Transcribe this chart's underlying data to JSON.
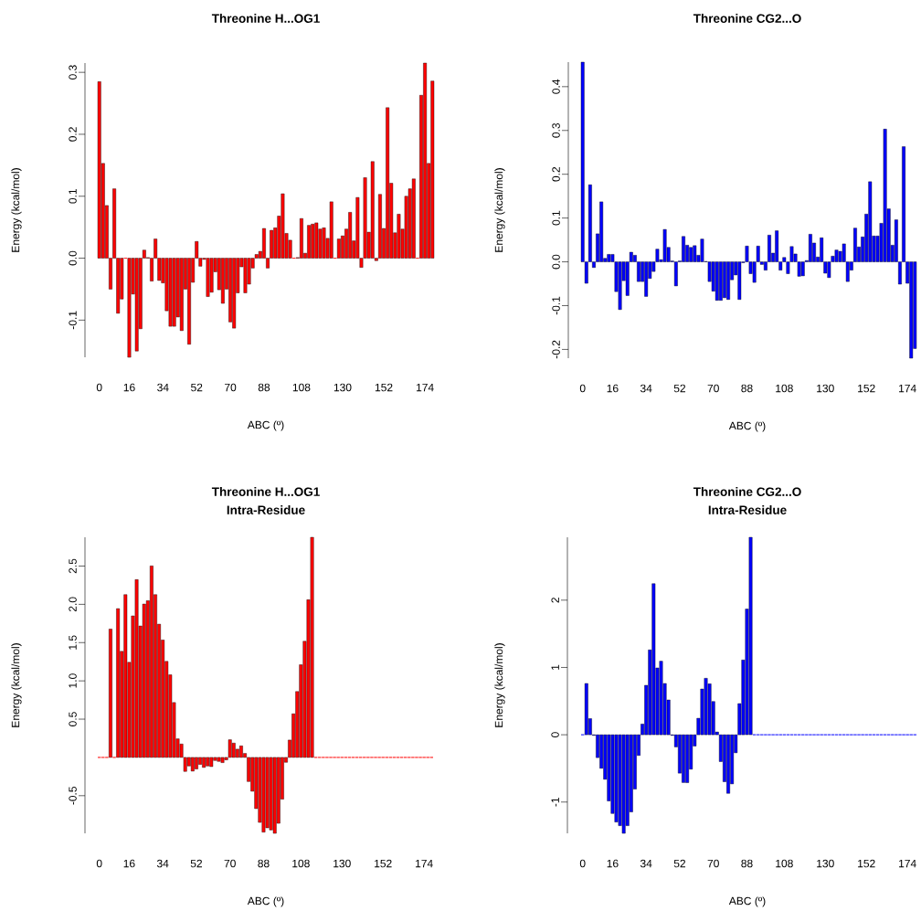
{
  "chart_data": [
    {
      "type": "bar",
      "title": "Threonine H...OG1",
      "xlabel": "ABC (º)",
      "ylabel": "Energy (kcal/mol)",
      "color": "#ff0000",
      "categories": [
        "0",
        null,
        null,
        null,
        null,
        null,
        null,
        null,
        "16",
        null,
        null,
        null,
        null,
        null,
        null,
        null,
        null,
        "34",
        null,
        null,
        null,
        null,
        null,
        null,
        null,
        null,
        "52",
        null,
        null,
        null,
        null,
        null,
        null,
        null,
        null,
        "70",
        null,
        null,
        null,
        null,
        null,
        null,
        null,
        null,
        "88",
        null,
        null,
        null,
        null,
        null,
        null,
        null,
        null,
        null,
        "108",
        null,
        null,
        null,
        null,
        null,
        null,
        null,
        null,
        null,
        null,
        "130",
        null,
        null,
        null,
        null,
        null,
        null,
        null,
        null,
        null,
        null,
        "152",
        null,
        null,
        null,
        null,
        null,
        null,
        null,
        null,
        null,
        null,
        "174",
        null,
        null
      ],
      "values": [
        0.285,
        0.153,
        0.085,
        -0.05,
        0.112,
        -0.089,
        -0.066,
        0,
        -0.16,
        -0.058,
        -0.15,
        -0.114,
        0.013,
        0.001,
        -0.037,
        0.031,
        -0.036,
        -0.04,
        -0.085,
        -0.11,
        -0.11,
        -0.095,
        -0.117,
        -0.05,
        -0.139,
        -0.039,
        0.027,
        -0.013,
        -0.002,
        -0.062,
        -0.055,
        -0.022,
        -0.051,
        -0.073,
        -0.05,
        -0.103,
        -0.113,
        -0.056,
        -0.014,
        -0.056,
        -0.042,
        -0.016,
        0.006,
        0.011,
        0.048,
        -0.016,
        0.045,
        0.049,
        0.068,
        0.104,
        0.04,
        0.029,
        0,
        0.001,
        0.064,
        0.008,
        0.053,
        0.055,
        0.057,
        0.047,
        0.049,
        0.032,
        0.091,
        0,
        0.031,
        0.036,
        0.047,
        0.074,
        0.028,
        0.098,
        -0.015,
        0.13,
        0.042,
        0.156,
        -0.004,
        0.103,
        0.048,
        0.243,
        0.121,
        0.041,
        0.071,
        0.047,
        0.1,
        0.112,
        0.128,
        0,
        0.263,
        0.315,
        0.153,
        0.286
      ],
      "ylim": [
        -0.16,
        0.315
      ],
      "yticks": [
        -0.1,
        {
          "value": 0,
          "label": "0.0"
        },
        0.1,
        0.2,
        0.3
      ]
    },
    {
      "type": "bar",
      "title": "Threonine CG2...O",
      "xlabel": "ABC (º)",
      "ylabel": "Energy (kcal/mol)",
      "color": "#0000ff",
      "categories": [
        "0",
        null,
        null,
        null,
        null,
        null,
        null,
        null,
        "16",
        null,
        null,
        null,
        null,
        null,
        null,
        null,
        null,
        "34",
        null,
        null,
        null,
        null,
        null,
        null,
        null,
        null,
        "52",
        null,
        null,
        null,
        null,
        null,
        null,
        null,
        null,
        "70",
        null,
        null,
        null,
        null,
        null,
        null,
        null,
        null,
        "88",
        null,
        null,
        null,
        null,
        null,
        null,
        null,
        null,
        null,
        "108",
        null,
        null,
        null,
        null,
        null,
        null,
        null,
        null,
        null,
        null,
        "130",
        null,
        null,
        null,
        null,
        null,
        null,
        null,
        null,
        null,
        null,
        "152",
        null,
        null,
        null,
        null,
        null,
        null,
        null,
        null,
        null,
        null,
        "174",
        null,
        null
      ],
      "values": [
        0.456,
        -0.049,
        0.176,
        -0.013,
        0.064,
        0.137,
        0.008,
        0.017,
        0.017,
        -0.068,
        -0.109,
        -0.043,
        -0.077,
        0.022,
        0.015,
        -0.045,
        -0.045,
        -0.079,
        -0.038,
        -0.022,
        0.029,
        0.005,
        0.074,
        0.033,
        0.002,
        -0.055,
        0.002,
        0.058,
        0.038,
        0.033,
        0.037,
        0.015,
        0.052,
        0.001,
        -0.045,
        -0.067,
        -0.088,
        -0.088,
        -0.082,
        -0.086,
        -0.041,
        -0.03,
        -0.086,
        -0.002,
        0.036,
        -0.027,
        -0.047,
        0.036,
        -0.006,
        -0.019,
        0.061,
        0.02,
        0.071,
        -0.019,
        0.01,
        -0.027,
        0.035,
        0.018,
        -0.033,
        -0.032,
        0.003,
        0.063,
        0.043,
        0.011,
        0.055,
        -0.026,
        -0.036,
        0.013,
        0.027,
        0.024,
        0.041,
        -0.045,
        -0.019,
        0.077,
        0.034,
        0.057,
        0.109,
        0.183,
        0.059,
        0.059,
        0.088,
        0.303,
        0.121,
        0.038,
        0.096,
        -0.051,
        0.263,
        -0.049,
        -0.22,
        -0.198
      ],
      "ylim": [
        -0.22,
        0.456
      ],
      "yticks": [
        -0.2,
        -0.1,
        {
          "value": 0,
          "label": "0.0"
        },
        0.1,
        0.2,
        0.3,
        0.4
      ]
    },
    {
      "type": "bar",
      "title": "Threonine H...OG1",
      "subtitle": "Intra-Residue",
      "xlabel": "ABC (º)",
      "ylabel": "Energy (kcal/mol)",
      "color": "#ff0000",
      "categories": [
        "0",
        null,
        null,
        null,
        null,
        null,
        null,
        null,
        "16",
        null,
        null,
        null,
        null,
        null,
        null,
        null,
        null,
        "34",
        null,
        null,
        null,
        null,
        null,
        null,
        null,
        null,
        "52",
        null,
        null,
        null,
        null,
        null,
        null,
        null,
        null,
        "70",
        null,
        null,
        null,
        null,
        null,
        null,
        null,
        null,
        "88",
        null,
        null,
        null,
        null,
        null,
        null,
        null,
        null,
        null,
        "108",
        null,
        null,
        null,
        null,
        null,
        null,
        null,
        null,
        null,
        null,
        "130",
        null,
        null,
        null,
        null,
        null,
        null,
        null,
        null,
        null,
        null,
        "152",
        null,
        null,
        null,
        null,
        null,
        null,
        null,
        null,
        null,
        null,
        "174",
        null,
        null
      ],
      "values": [
        0,
        0,
        0,
        1.677,
        0,
        1.944,
        1.386,
        2.127,
        1.243,
        1.849,
        2.323,
        1.717,
        2.004,
        2.048,
        2.502,
        2.127,
        1.741,
        1.534,
        1.255,
        1.08,
        0.717,
        0.243,
        0.175,
        -0.183,
        -0.112,
        -0.179,
        -0.151,
        -0.092,
        -0.131,
        -0.112,
        -0.12,
        -0.04,
        -0.052,
        -0.068,
        -0.032,
        0.231,
        0.187,
        0.108,
        0.151,
        0.052,
        -0.315,
        -0.442,
        -0.669,
        -0.849,
        -0.976,
        -0.92,
        -0.948,
        -0.992,
        -0.861,
        -0.546,
        -0.064,
        0.227,
        0.57,
        0.861,
        1.211,
        1.518,
        2.06,
        2.876,
        0,
        0,
        0,
        0,
        0,
        0,
        0,
        0,
        0,
        0,
        0,
        0,
        0,
        0,
        0,
        0,
        0,
        0,
        0,
        0,
        0,
        0,
        0,
        0,
        0,
        0,
        0,
        0,
        0,
        0,
        0,
        0
      ],
      "ylim": [
        -0.992,
        2.876
      ],
      "yticks": [
        -0.5,
        0.5,
        {
          "value": 1,
          "label": "1.0"
        },
        1.5,
        {
          "value": 2,
          "label": "2.0"
        },
        2.5
      ]
    },
    {
      "type": "bar",
      "title": "Threonine CG2...O",
      "subtitle": "Intra-Residue",
      "xlabel": "ABC (º)",
      "ylabel": "Energy (kcal/mol)",
      "color": "#0000ff",
      "categories": [
        "0",
        null,
        null,
        null,
        null,
        null,
        null,
        null,
        "16",
        null,
        null,
        null,
        null,
        null,
        null,
        null,
        null,
        "34",
        null,
        null,
        null,
        null,
        null,
        null,
        null,
        null,
        "52",
        null,
        null,
        null,
        null,
        null,
        null,
        null,
        null,
        "70",
        null,
        null,
        null,
        null,
        null,
        null,
        null,
        null,
        "88",
        null,
        null,
        null,
        null,
        null,
        null,
        null,
        null,
        null,
        "108",
        null,
        null,
        null,
        null,
        null,
        null,
        null,
        null,
        null,
        null,
        "130",
        null,
        null,
        null,
        null,
        null,
        null,
        null,
        null,
        null,
        null,
        "152",
        null,
        null,
        null,
        null,
        null,
        null,
        null,
        null,
        null,
        null,
        "174",
        null,
        null
      ],
      "values": [
        0,
        0.762,
        0.24,
        -0.01,
        -0.34,
        -0.499,
        -0.662,
        -0.984,
        -1.17,
        -1.297,
        -1.351,
        -1.465,
        -1.351,
        -1.147,
        -0.807,
        -0.308,
        0.159,
        0.735,
        1.261,
        2.245,
        0.993,
        1.093,
        0.762,
        0.517,
        -0.01,
        -0.181,
        -0.571,
        -0.71,
        -0.712,
        -0.512,
        -0.168,
        0.245,
        0.68,
        0.839,
        0.757,
        0.494,
        0.041,
        -0.399,
        -0.698,
        -0.871,
        -0.73,
        -0.268,
        0.463,
        1.111,
        1.868,
        2.934,
        0,
        0,
        0,
        0,
        0,
        0,
        0,
        0,
        0,
        0,
        0,
        0,
        0,
        0,
        0,
        0,
        0,
        0,
        0,
        0,
        0,
        0,
        0,
        0,
        0,
        0,
        0,
        0,
        0,
        0,
        0,
        0,
        0,
        0,
        0,
        0,
        0,
        0,
        0,
        0,
        0,
        0,
        0,
        0
      ],
      "ylim": [
        -1.465,
        2.934
      ],
      "yticks": [
        -1,
        0,
        1,
        2
      ]
    }
  ]
}
